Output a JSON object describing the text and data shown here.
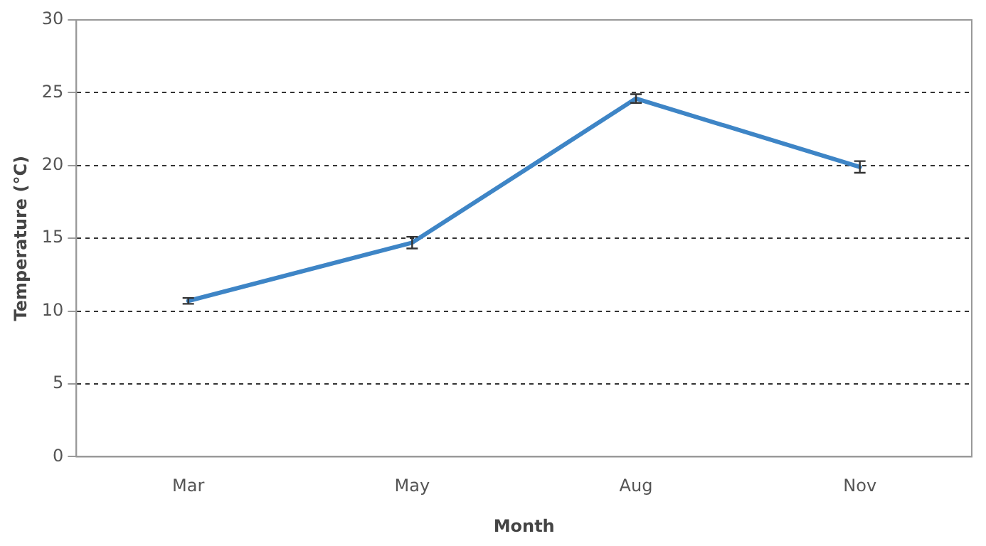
{
  "chart_data": {
    "type": "line",
    "xlabel": "Month",
    "ylabel": "Temperature (°C)",
    "categories": [
      "Mar",
      "May",
      "Aug",
      "Nov"
    ],
    "series": [
      {
        "color": "#3e85c6",
        "values": [
          10.7,
          14.7,
          24.6,
          19.9
        ],
        "errors": [
          0.2,
          0.4,
          0.3,
          0.4
        ]
      }
    ],
    "ylim": [
      0,
      30
    ],
    "yticks": [
      0,
      5,
      10,
      15,
      20,
      25,
      30
    ],
    "grid": "y",
    "legend": false,
    "line_style": "solid"
  }
}
